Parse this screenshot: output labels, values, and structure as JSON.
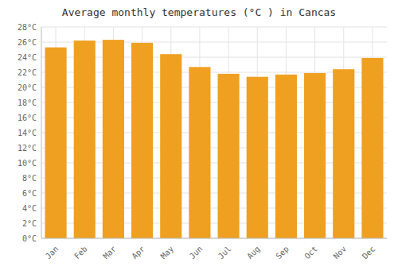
{
  "chart_data": {
    "type": "bar",
    "title": "Average monthly temperatures (°C ) in Cancas",
    "categories": [
      "Jan",
      "Feb",
      "Mar",
      "Apr",
      "May",
      "Jun",
      "Jul",
      "Aug",
      "Sep",
      "Oct",
      "Nov",
      "Dec"
    ],
    "values": [
      25.3,
      26.2,
      26.3,
      25.9,
      24.4,
      22.7,
      21.8,
      21.4,
      21.7,
      21.9,
      22.4,
      23.9
    ],
    "color": "#F0A020",
    "ylim": [
      0,
      28
    ],
    "yticks": [
      {
        "value": 0,
        "label": "0°C"
      },
      {
        "value": 2,
        "label": "2°C"
      },
      {
        "value": 4,
        "label": "4°C"
      },
      {
        "value": 6,
        "label": "6°C"
      },
      {
        "value": 8,
        "label": "8°C"
      },
      {
        "value": 10,
        "label": "10°C"
      },
      {
        "value": 12,
        "label": "12°C"
      },
      {
        "value": 14,
        "label": "14°C"
      },
      {
        "value": 16,
        "label": "16°C"
      },
      {
        "value": 18,
        "label": "18°C"
      },
      {
        "value": 20,
        "label": "20°C"
      },
      {
        "value": 22,
        "label": "22°C"
      },
      {
        "value": 24,
        "label": "24°C"
      },
      {
        "value": 26,
        "label": "26°C"
      },
      {
        "value": 28,
        "label": "28°C"
      }
    ],
    "grid": true
  }
}
